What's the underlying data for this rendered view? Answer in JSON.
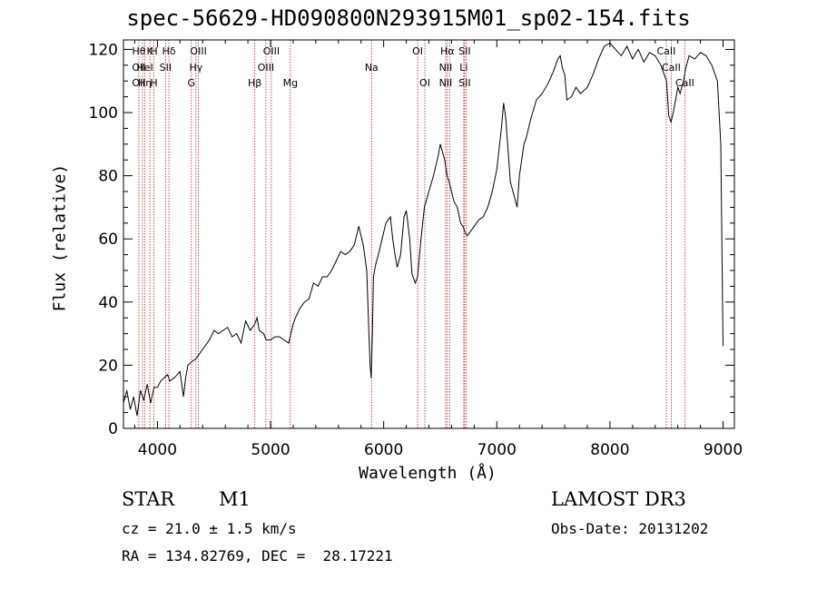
{
  "chart_data": {
    "type": "line",
    "title": "spec-56629-HD090800N293915M01_sp02-154.fits",
    "xlabel": "Wavelength (Å)",
    "ylabel": "Flux (relative)",
    "xlim": [
      3700,
      9100
    ],
    "ylim": [
      0,
      123
    ],
    "x_ticks": [
      4000,
      5000,
      6000,
      7000,
      8000,
      9000
    ],
    "y_ticks": [
      0,
      20,
      40,
      60,
      80,
      100,
      120
    ],
    "grid": false,
    "line_color": "#000000",
    "marker_color": "#b22222",
    "series": [
      {
        "x": [
          3700,
          3730,
          3760,
          3790,
          3820,
          3850,
          3880,
          3910,
          3940,
          3970,
          4000,
          4030,
          4060,
          4090,
          4110,
          4150,
          4200,
          4230,
          4250,
          4270,
          4300,
          4340,
          4380,
          4420,
          4460,
          4500,
          4540,
          4580,
          4620,
          4660,
          4700,
          4740,
          4780,
          4820,
          4860,
          4880,
          4900,
          4940,
          4960,
          5000,
          5040,
          5080,
          5120,
          5160,
          5200,
          5220,
          5260,
          5300,
          5340,
          5380,
          5420,
          5460,
          5500,
          5540,
          5580,
          5620,
          5660,
          5700,
          5740,
          5780,
          5820,
          5850,
          5870,
          5880,
          5890,
          5900,
          5910,
          5930,
          5960,
          6000,
          6020,
          6040,
          6060,
          6080,
          6100,
          6120,
          6150,
          6180,
          6200,
          6230,
          6250,
          6280,
          6300,
          6330,
          6360,
          6400,
          6440,
          6480,
          6500,
          6540,
          6560,
          6580,
          6600,
          6620,
          6650,
          6680,
          6700,
          6720,
          6740,
          6760,
          6800,
          6840,
          6880,
          6920,
          6960,
          7000,
          7040,
          7060,
          7080,
          7100,
          7120,
          7150,
          7180,
          7200,
          7240,
          7260,
          7300,
          7350,
          7400,
          7450,
          7500,
          7540,
          7560,
          7580,
          7600,
          7620,
          7660,
          7700,
          7740,
          7800,
          7850,
          7900,
          7950,
          8000,
          8050,
          8100,
          8150,
          8200,
          8250,
          8300,
          8350,
          8400,
          8450,
          8500,
          8520,
          8540,
          8560,
          8600,
          8620,
          8650,
          8670,
          8700,
          8750,
          8800,
          8850,
          8900,
          8950,
          8980,
          9000
        ],
        "y": [
          8,
          12,
          6,
          10,
          4,
          12,
          9,
          14,
          8,
          13,
          13,
          15,
          16,
          17,
          15,
          16,
          18,
          10,
          16,
          20,
          21,
          22,
          24,
          26,
          28,
          31,
          30,
          31,
          32,
          29,
          30,
          27,
          34,
          31,
          33,
          35,
          31,
          30,
          28,
          28,
          29,
          29,
          28,
          27,
          33,
          35,
          38,
          40,
          41,
          46,
          45,
          48,
          48,
          50,
          53,
          56,
          55,
          56,
          58,
          64,
          58,
          50,
          30,
          20,
          16,
          30,
          48,
          52,
          56,
          62,
          65,
          66,
          67,
          60,
          55,
          51,
          55,
          67,
          69,
          60,
          49,
          46,
          48,
          60,
          70,
          75,
          80,
          86,
          90,
          85,
          80,
          78,
          75,
          72,
          70,
          65,
          64,
          62,
          61,
          62,
          64,
          66,
          67,
          70,
          75,
          82,
          95,
          103,
          98,
          88,
          78,
          74,
          70,
          80,
          90,
          92,
          98,
          104,
          106,
          109,
          113,
          117,
          118,
          114,
          112,
          104,
          105,
          108,
          106,
          108,
          112,
          117,
          121,
          122,
          120,
          118,
          121,
          117,
          120,
          116,
          119,
          118,
          115,
          110,
          99,
          97,
          100,
          108,
          106,
          110,
          114,
          118,
          117,
          119,
          118,
          115,
          110,
          90,
          26
        ]
      }
    ],
    "line_markers": [
      {
        "x": 3836,
        "labels": [
          "Hθ",
          "OII",
          "OII"
        ]
      },
      {
        "x": 3869,
        "labels": [
          "",
          "",
          ""
        ]
      },
      {
        "x": 3889,
        "labels": [
          "",
          "HeI",
          "Hη"
        ]
      },
      {
        "x": 3934,
        "labels": [
          "K",
          "",
          ""
        ]
      },
      {
        "x": 3969,
        "labels": [
          "H",
          "",
          "H"
        ]
      },
      {
        "x": 4072,
        "labels": [
          "",
          "SII",
          ""
        ]
      },
      {
        "x": 4102,
        "labels": [
          "Hδ",
          "",
          ""
        ]
      },
      {
        "x": 4300,
        "labels": [
          "",
          "",
          "G"
        ]
      },
      {
        "x": 4341,
        "labels": [
          "",
          "Hγ",
          ""
        ]
      },
      {
        "x": 4363,
        "labels": [
          "OIII",
          "",
          ""
        ]
      },
      {
        "x": 4861,
        "labels": [
          "",
          "",
          "Hβ"
        ]
      },
      {
        "x": 4959,
        "labels": [
          "",
          "OIII",
          ""
        ]
      },
      {
        "x": 5007,
        "labels": [
          "OIII",
          "",
          ""
        ]
      },
      {
        "x": 5175,
        "labels": [
          "",
          "",
          "Mg"
        ]
      },
      {
        "x": 5893,
        "labels": [
          "",
          "Na",
          ""
        ]
      },
      {
        "x": 6300,
        "labels": [
          "OI",
          "",
          ""
        ]
      },
      {
        "x": 6364,
        "labels": [
          "",
          "",
          "OI"
        ]
      },
      {
        "x": 6548,
        "labels": [
          "",
          "NII",
          "NII"
        ]
      },
      {
        "x": 6563,
        "labels": [
          "Hα",
          "",
          ""
        ]
      },
      {
        "x": 6583,
        "labels": [
          "",
          "",
          ""
        ]
      },
      {
        "x": 6708,
        "labels": [
          "",
          "Li",
          ""
        ]
      },
      {
        "x": 6716,
        "labels": [
          "SII",
          "",
          "SII"
        ]
      },
      {
        "x": 6731,
        "labels": [
          "",
          "",
          ""
        ]
      },
      {
        "x": 8498,
        "labels": [
          "CaII",
          "",
          ""
        ]
      },
      {
        "x": 8542,
        "labels": [
          "",
          "CaII",
          ""
        ]
      },
      {
        "x": 8662,
        "labels": [
          "",
          "",
          "CaII"
        ]
      }
    ]
  },
  "info": {
    "object_class": "STAR",
    "subclass": "M1",
    "survey": "LAMOST DR3",
    "redshift": "cz = 21.0 ± 1.5 km/s",
    "obs_date": "Obs-Date: 20131202",
    "coords": "RA = 134.82769, DEC =  28.17221"
  }
}
